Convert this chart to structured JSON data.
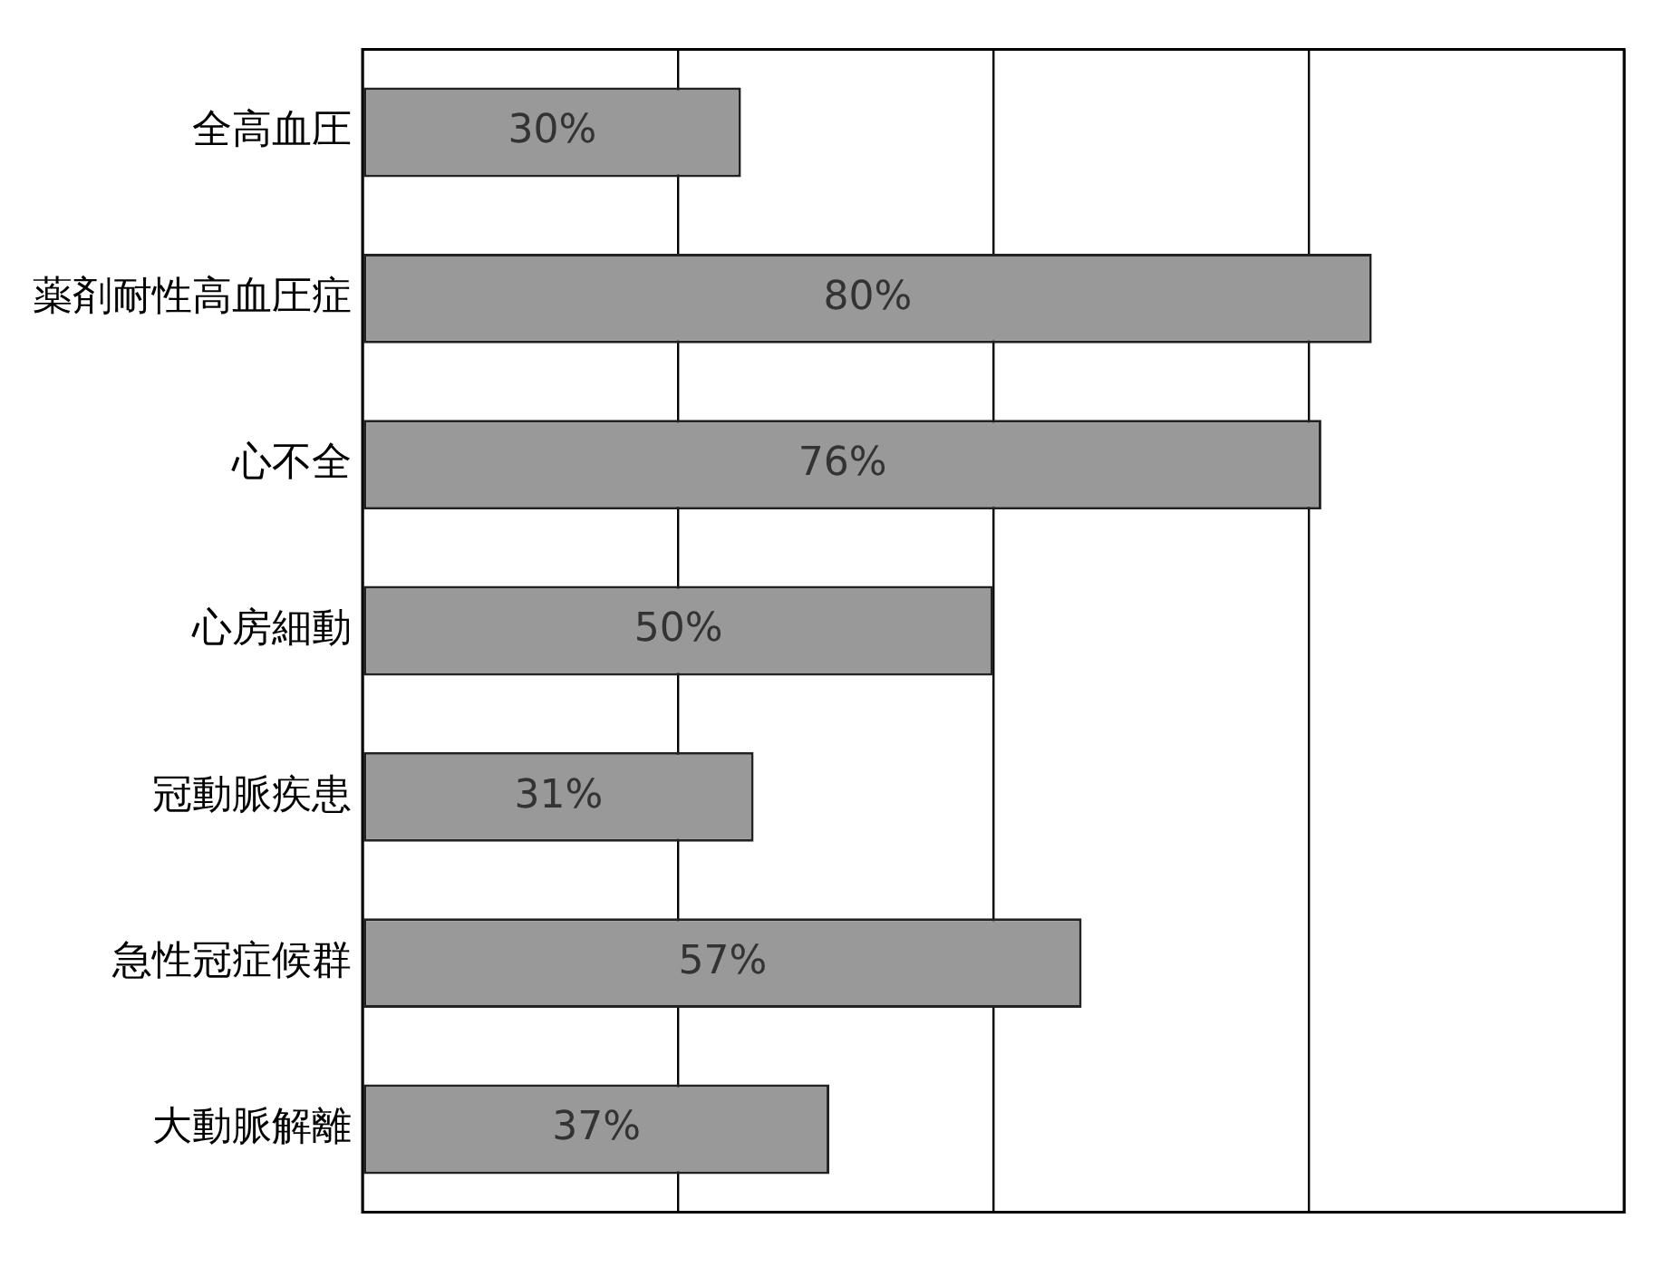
{
  "chart_data": {
    "type": "bar",
    "orientation": "horizontal",
    "categories": [
      "全高血圧",
      "薬剤耐性高血圧症",
      "心不全",
      "心房細動",
      "冠動脈疾患",
      "急性冠症候群",
      "大動脈解離"
    ],
    "values": [
      30,
      80,
      76,
      50,
      31,
      57,
      37
    ],
    "value_labels": [
      "30%",
      "80%",
      "76%",
      "50%",
      "31%",
      "57%",
      "37%"
    ],
    "color": "#999999",
    "xlim": [
      0,
      100
    ],
    "xticks": [
      {
        "value": 0,
        "label": null
      },
      {
        "value": 25,
        "label": null
      },
      {
        "value": 50,
        "label": null
      },
      {
        "value": 75,
        "label": null
      },
      {
        "value": 100,
        "label": null
      }
    ],
    "grid": "x",
    "tick_labels": "y",
    "legend": false
  }
}
